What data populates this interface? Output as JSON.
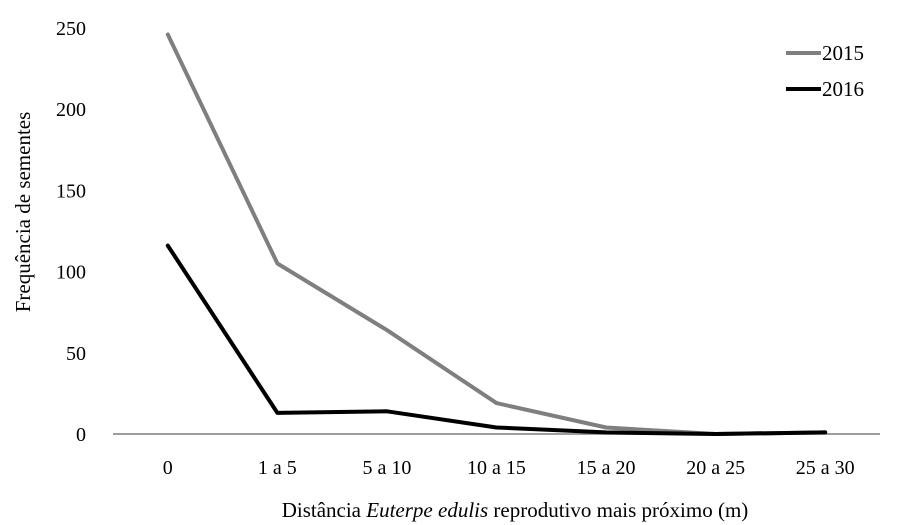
{
  "chart_data": {
    "type": "line",
    "title": "",
    "ylabel": "Frequência de sementes",
    "xlabel_parts": [
      {
        "text": "Distância ",
        "italic": false
      },
      {
        "text": "Euterpe edulis",
        "italic": true
      },
      {
        "text": " reprodutivo mais próximo (m)",
        "italic": false
      }
    ],
    "categories": [
      "0",
      "1 a 5",
      "5 a 10",
      "10 a 15",
      "15 a 20",
      "20 a 25",
      "25 a 30"
    ],
    "yticks": [
      0,
      50,
      100,
      150,
      200,
      250
    ],
    "ylim": [
      0,
      250
    ],
    "grid": false,
    "legend_position": "top-right",
    "series": [
      {
        "name": "2015",
        "color": "#7f7f7f",
        "values": [
          246,
          105,
          64,
          19,
          4,
          0,
          1
        ]
      },
      {
        "name": "2016",
        "color": "#000000",
        "values": [
          116,
          13,
          14,
          4,
          1,
          0,
          1
        ]
      }
    ]
  }
}
